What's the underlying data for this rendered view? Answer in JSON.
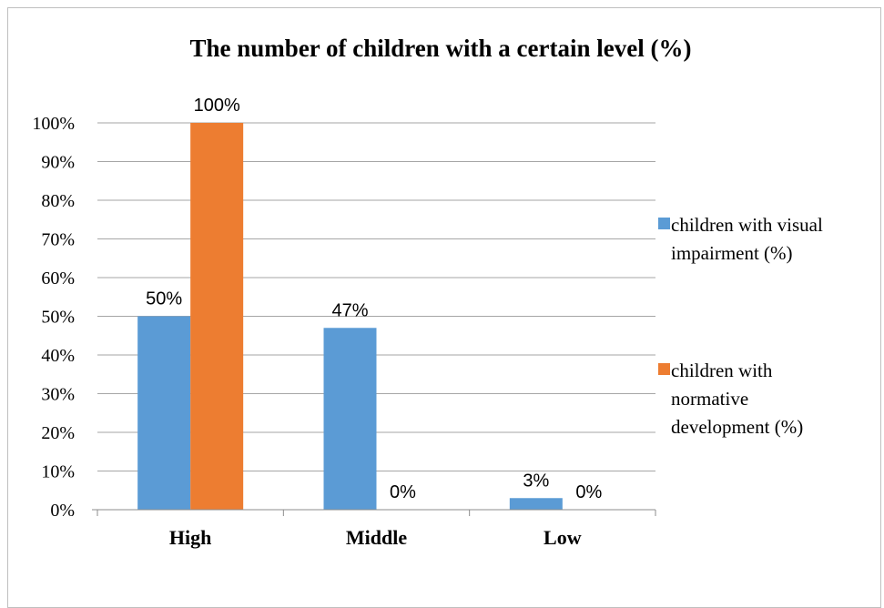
{
  "chart_data": {
    "type": "bar",
    "title": "The number of children with a certain level (%)",
    "categories": [
      "High",
      "Middle",
      "Low"
    ],
    "series": [
      {
        "name": "children with visual impairment (%)",
        "legend_lines": [
          "children with visual",
          "impairment (%)"
        ],
        "values": [
          50,
          47,
          3
        ],
        "labels": [
          "50%",
          "47%",
          "3%"
        ],
        "color": "#5b9bd5"
      },
      {
        "name": "children with normative development (%)",
        "legend_lines": [
          "children with",
          "normative",
          "development (%)"
        ],
        "values": [
          100,
          0,
          0
        ],
        "labels": [
          "100%",
          "0%",
          "0%"
        ],
        "color": "#ed7d31"
      }
    ],
    "ylim": [
      0,
      100
    ],
    "yticks": [
      0,
      10,
      20,
      30,
      40,
      50,
      60,
      70,
      80,
      90,
      100
    ],
    "ytick_labels": [
      "0%",
      "10%",
      "20%",
      "30%",
      "40%",
      "50%",
      "60%",
      "70%",
      "80%",
      "90%",
      "100%"
    ],
    "grid": true,
    "legend_position": "right",
    "xlabel": "",
    "ylabel": ""
  }
}
